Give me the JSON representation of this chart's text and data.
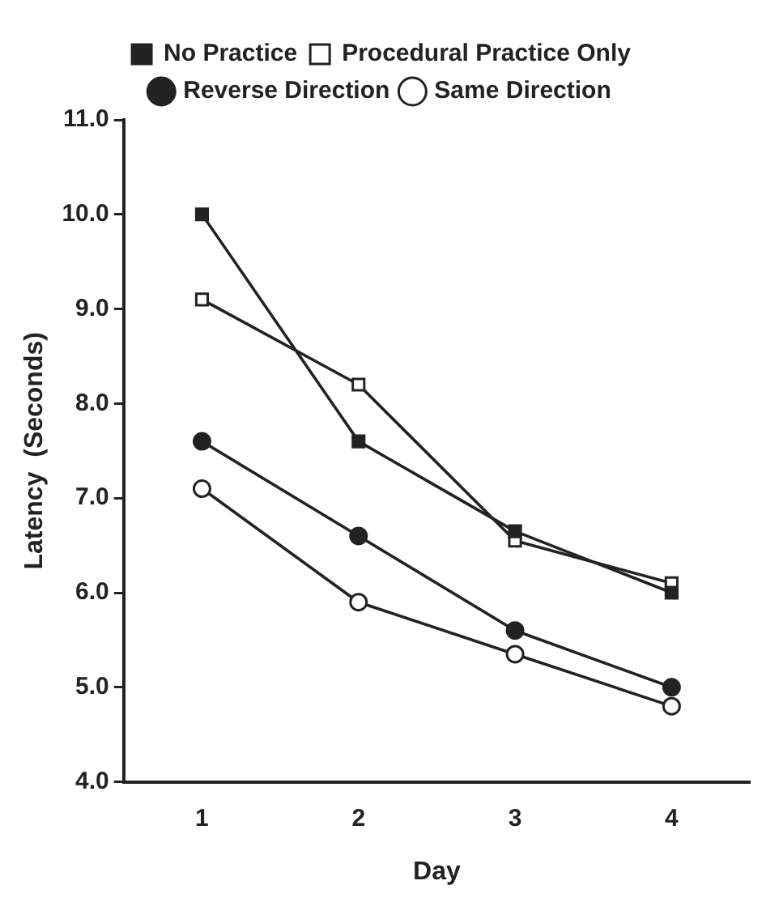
{
  "chart_data": {
    "type": "line",
    "xlabel": "Day",
    "ylabel": "Latency  (Seconds)",
    "categories": [
      "1",
      "2",
      "3",
      "4"
    ],
    "ylim": [
      4,
      11
    ],
    "yticks": [
      {
        "value": 4,
        "label": "4.0"
      },
      {
        "value": 5,
        "label": "5.0"
      },
      {
        "value": 6,
        "label": "6.0"
      },
      {
        "value": 7,
        "label": "7.0"
      },
      {
        "value": 8,
        "label": "8.0"
      },
      {
        "value": 9,
        "label": "9.0"
      },
      {
        "value": 10,
        "label": "10.0"
      },
      {
        "value": 11,
        "label": "11.0"
      }
    ],
    "grid": false,
    "legend": "top",
    "line_style": "solid",
    "series": [
      {
        "name": "No Practice",
        "color": "#222222",
        "marker": "square",
        "values": [
          10.0,
          7.6,
          6.65,
          6.0
        ]
      },
      {
        "name": "Procedural Practice Only",
        "color": "#222222",
        "marker": "square",
        "colors": [
          "#ffffff",
          "#ffffff",
          "#ffffff",
          "#ffffff"
        ],
        "values": [
          9.1,
          8.2,
          6.55,
          6.1
        ]
      },
      {
        "name": "Reverse Direction",
        "color": "#222222",
        "marker": "circle",
        "values": [
          7.6,
          6.6,
          5.6,
          5.0
        ]
      },
      {
        "name": "Same Direction",
        "color": "#222222",
        "marker": "circle",
        "colors": [
          "#ffffff",
          "#ffffff",
          "#ffffff",
          "#ffffff"
        ],
        "values": [
          7.1,
          5.9,
          5.35,
          4.8
        ]
      }
    ]
  }
}
